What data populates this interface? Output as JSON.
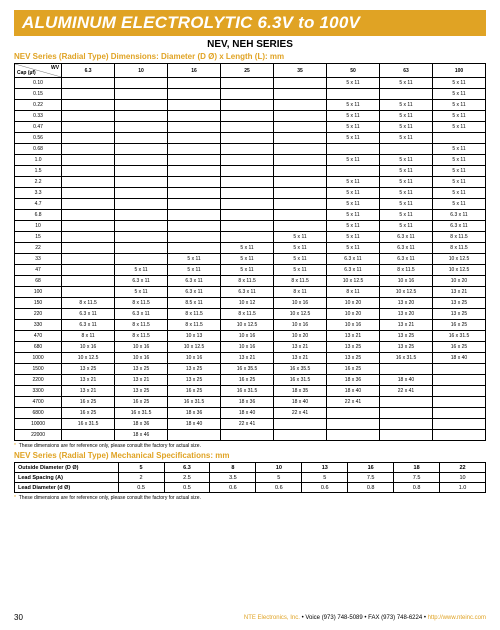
{
  "banner": "ALUMINUM ELECTROLYTIC 6.3V to 100V",
  "subtitle": "NEV, NEH SERIES",
  "section1": "NEV Series (Radial Type) Dimensions:  Diameter (D Ø) x Length (L): mm",
  "corner_wv": "WV",
  "corner_cap": "Cap (µf)",
  "wv_headers": [
    "6.3",
    "10",
    "16",
    "25",
    "35",
    "50",
    "63",
    "100"
  ],
  "rows": [
    {
      "c": "0.10",
      "v": [
        "",
        "",
        "",
        "",
        "",
        "5 x 11",
        "5 x 11",
        "5 x 11"
      ]
    },
    {
      "c": "0.15",
      "v": [
        "",
        "",
        "",
        "",
        "",
        "",
        "",
        "5 x 11"
      ]
    },
    {
      "c": "0.22",
      "v": [
        "",
        "",
        "",
        "",
        "",
        "5 x 11",
        "5 x 11",
        "5 x 11"
      ]
    },
    {
      "c": "0.33",
      "v": [
        "",
        "",
        "",
        "",
        "",
        "5 x 11",
        "5 x 11",
        "5 x 11"
      ]
    },
    {
      "c": "0.47",
      "v": [
        "",
        "",
        "",
        "",
        "",
        "5 x 11",
        "5 x 11",
        "5 x 11"
      ]
    },
    {
      "c": "0.56",
      "v": [
        "",
        "",
        "",
        "",
        "",
        "5 x 11",
        "5 x 11",
        ""
      ]
    },
    {
      "c": "0.68",
      "v": [
        "",
        "",
        "",
        "",
        "",
        "",
        "",
        "5 x 11"
      ]
    },
    {
      "c": "1.0",
      "v": [
        "",
        "",
        "",
        "",
        "",
        "5 x 11",
        "5 x 11",
        "5 x 11"
      ]
    },
    {
      "c": "1.5",
      "v": [
        "",
        "",
        "",
        "",
        "",
        "",
        "5 x 11",
        "5 x 11"
      ]
    },
    {
      "c": "2.2",
      "v": [
        "",
        "",
        "",
        "",
        "",
        "5 x 11",
        "5 x 11",
        "5 x 11"
      ]
    },
    {
      "c": "3.3",
      "v": [
        "",
        "",
        "",
        "",
        "",
        "5 x 11",
        "5 x 11",
        "5 x 11"
      ]
    },
    {
      "c": "4.7",
      "v": [
        "",
        "",
        "",
        "",
        "",
        "5 x 11",
        "5 x 11",
        "5 x 11"
      ]
    },
    {
      "c": "6.8",
      "v": [
        "",
        "",
        "",
        "",
        "",
        "5 x 11",
        "5 x 11",
        "6.3 x 11"
      ]
    },
    {
      "c": "10",
      "v": [
        "",
        "",
        "",
        "",
        "",
        "5 x 11",
        "5 x 11",
        "6.3 x 11"
      ]
    },
    {
      "c": "15",
      "v": [
        "",
        "",
        "",
        "",
        "5 x 11",
        "5 x 11",
        "6.3 x 11",
        "8 x 11.5"
      ]
    },
    {
      "c": "22",
      "v": [
        "",
        "",
        "",
        "5 x 11",
        "5 x 11",
        "5 x 11",
        "6.3 x 11",
        "8 x 11.5"
      ]
    },
    {
      "c": "33",
      "v": [
        "",
        "",
        "5 x 11",
        "5 x 11",
        "5 x 11",
        "6.3 x 11",
        "6.3 x 11",
        "10 x 12.5"
      ]
    },
    {
      "c": "47",
      "v": [
        "",
        "5 x 11",
        "5 x 11",
        "5 x 11",
        "5 x 11",
        "6.3 x 11",
        "8 x 11.5",
        "10 x 12.5"
      ]
    },
    {
      "c": "68",
      "v": [
        "",
        "6.3 x 11",
        "6.3 x 11",
        "8 x 11.5",
        "8 x 11.5",
        "10 x 12.5",
        "10 x 16",
        "10 x 20"
      ]
    },
    {
      "c": "100",
      "v": [
        "",
        "5 x 11",
        "6.3 x 11",
        "6.3 x 11",
        "8 x 11",
        "8 x 11",
        "10 x 12.5",
        "13 x 21"
      ]
    },
    {
      "c": "150",
      "v": [
        "8 x 11.5",
        "8 x 11.5",
        "8.5 x 11",
        "10 x 12",
        "10 x 16",
        "10 x 20",
        "13 x 20",
        "13 x 25"
      ]
    },
    {
      "c": "220",
      "v": [
        "6.3 x 11",
        "6.3 x 11",
        "8 x 11.5",
        "8 x 11.5",
        "10 x 12.5",
        "10 x 20",
        "13 x 20",
        "13 x 25"
      ]
    },
    {
      "c": "330",
      "v": [
        "6.3 x 11",
        "8 x 11.5",
        "8 x 11.5",
        "10 x 12.5",
        "10 x 16",
        "10 x 16",
        "13 x 21",
        "16 x 25"
      ]
    },
    {
      "c": "470",
      "v": [
        "8 x 11",
        "8 x 11.5",
        "10 x 13",
        "10 x 16",
        "10 x 20",
        "13 x 21",
        "13 x 25",
        "16 x 31.5"
      ]
    },
    {
      "c": "680",
      "v": [
        "10 x 16",
        "10 x 16",
        "10 x 12.5",
        "10 x 16",
        "13 x 21",
        "13 x 25",
        "13 x 25",
        "16 x 25"
      ]
    },
    {
      "c": "1000",
      "v": [
        "10 x 12.5",
        "10 x 16",
        "10 x 16",
        "13 x 21",
        "13 x 21",
        "13 x 25",
        "16 x 31.5",
        "18 x 40"
      ]
    },
    {
      "c": "1500",
      "v": [
        "13 x 25",
        "13 x 25",
        "13 x 25",
        "16 x 35.5",
        "16 x 35.5",
        "16 x 25",
        "",
        ""
      ]
    },
    {
      "c": "2200",
      "v": [
        "13 x 21",
        "13 x 21",
        "13 x 25",
        "16 x 25",
        "16 x 31.5",
        "18 x 36",
        "18 x 40",
        ""
      ]
    },
    {
      "c": "3300",
      "v": [
        "13 x 21",
        "13 x 25",
        "16 x 25",
        "16 x 31.5",
        "18 x 35",
        "18 x 40",
        "22 x 41",
        ""
      ]
    },
    {
      "c": "4700",
      "v": [
        "16 x 25",
        "16 x 25",
        "16 x 31.5",
        "18 x 36",
        "18 x 40",
        "22 x 41",
        "",
        ""
      ]
    },
    {
      "c": "6800",
      "v": [
        "16 x 25",
        "16 x 31.5",
        "18 x 36",
        "18 x 40",
        "22 x 41",
        "",
        "",
        ""
      ]
    },
    {
      "c": "10000",
      "v": [
        "16 x 31.5",
        "18 x 36",
        "18 x 40",
        "22 x 41",
        "",
        "",
        "",
        ""
      ]
    },
    {
      "c": "22000",
      "v": [
        "",
        "18 x 46",
        "",
        "",
        "",
        "",
        "",
        ""
      ]
    }
  ],
  "footnote": "These dimensions are for reference only, please consult the factory for actual size.",
  "section2": "NEV Series (Radial Type) Mechanical Specifications:  mm",
  "mech_headers": [
    "Outside Diameter (D Ø)",
    "5",
    "6.3",
    "8",
    "10",
    "13",
    "16",
    "18",
    "22"
  ],
  "mech_rows": [
    [
      "Lead Spacing (A)",
      "2",
      "2.5",
      "3.5",
      "5",
      "5",
      "7.5",
      "7.5",
      "10"
    ],
    [
      "Lead Diameter (d Ø)",
      "0.5",
      "0.5",
      "0.6",
      "0.6",
      "0.6",
      "0.8",
      "0.8",
      "1.0"
    ]
  ],
  "page_num": "30",
  "company": "NTE Electronics, Inc.",
  "voice": "Voice (973) 748-5089",
  "fax": "FAX (973) 748-6224",
  "url": "http://www.nteinc.com",
  "bullet": " • "
}
